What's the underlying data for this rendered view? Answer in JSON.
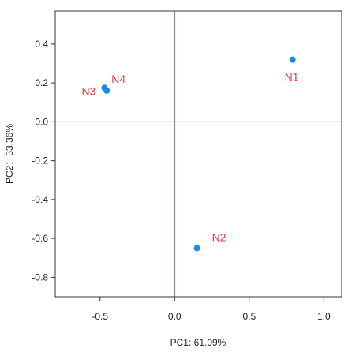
{
  "chart_data": {
    "type": "scatter",
    "title": "",
    "xlabel": "PC1: 61.09%",
    "ylabel": "PC2：33.36%",
    "xlim": [
      -0.8,
      1.12
    ],
    "ylim": [
      -0.9,
      0.57
    ],
    "xticks": [
      "-0.5",
      "0.0",
      "0.5",
      "1.0"
    ],
    "xtick_values": [
      -0.5,
      0.0,
      0.5,
      1.0
    ],
    "yticks": [
      "-0.8",
      "-0.6",
      "-0.4",
      "-0.2",
      "0.0",
      "0.2",
      "0.4"
    ],
    "ytick_values": [
      -0.8,
      -0.6,
      -0.4,
      -0.2,
      0.0,
      0.2,
      0.4
    ],
    "reference_lines": {
      "x": 0,
      "y": 0
    },
    "grid": false,
    "points": [
      {
        "label": "N1",
        "x": 0.79,
        "y": 0.32
      },
      {
        "label": "N2",
        "x": 0.15,
        "y": -0.65
      },
      {
        "label": "N3",
        "x": -0.47,
        "y": 0.175
      },
      {
        "label": "N4",
        "x": -0.455,
        "y": 0.16
      }
    ],
    "colors": {
      "point": "#1e88e5",
      "label": "#e53935",
      "reference_line": "#3a5fcd",
      "frame": "#333333"
    }
  }
}
